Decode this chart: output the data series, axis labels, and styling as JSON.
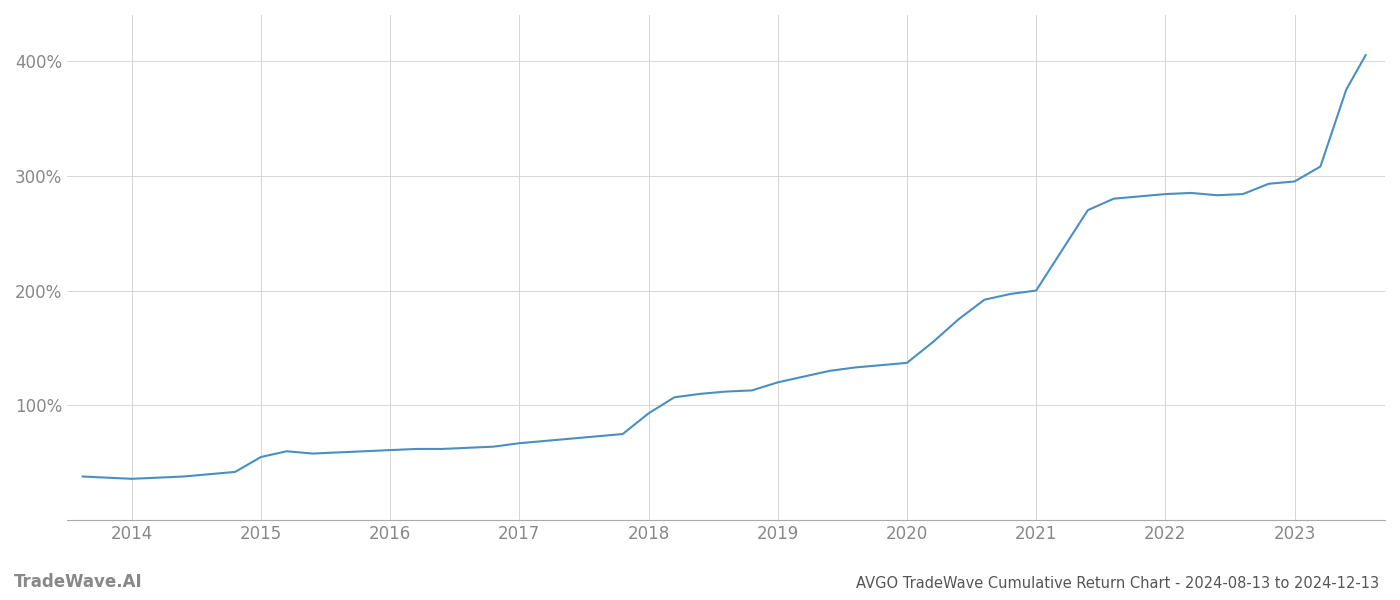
{
  "title": "AVGO TradeWave Cumulative Return Chart - 2024-08-13 to 2024-12-13",
  "watermark": "TradeWave.AI",
  "line_color": "#4a8fc4",
  "background_color": "#ffffff",
  "grid_color": "#d0d0d0",
  "x_years": [
    2014,
    2015,
    2016,
    2017,
    2018,
    2019,
    2020,
    2021,
    2022,
    2023
  ],
  "x_data": [
    2013.62,
    2014.0,
    2014.2,
    2014.4,
    2014.6,
    2014.8,
    2015.0,
    2015.2,
    2015.4,
    2015.6,
    2015.8,
    2016.0,
    2016.2,
    2016.4,
    2016.6,
    2016.8,
    2017.0,
    2017.2,
    2017.4,
    2017.6,
    2017.8,
    2018.0,
    2018.2,
    2018.4,
    2018.6,
    2018.8,
    2019.0,
    2019.2,
    2019.4,
    2019.6,
    2019.8,
    2020.0,
    2020.2,
    2020.4,
    2020.6,
    2020.8,
    2021.0,
    2021.2,
    2021.4,
    2021.6,
    2021.8,
    2022.0,
    2022.2,
    2022.4,
    2022.6,
    2022.8,
    2023.0,
    2023.2,
    2023.4,
    2023.55
  ],
  "y_data": [
    38,
    36,
    37,
    38,
    40,
    42,
    55,
    60,
    58,
    59,
    60,
    61,
    62,
    62,
    63,
    64,
    67,
    69,
    71,
    73,
    75,
    93,
    107,
    110,
    112,
    113,
    120,
    125,
    130,
    133,
    135,
    137,
    155,
    175,
    192,
    197,
    200,
    235,
    270,
    280,
    282,
    284,
    285,
    283,
    284,
    293,
    295,
    308,
    375,
    405
  ],
  "yticks": [
    100,
    200,
    300,
    400
  ],
  "ytick_labels": [
    "100%",
    "200%",
    "300%",
    "400%"
  ],
  "ylim": [
    0,
    440
  ],
  "xlim": [
    2013.5,
    2023.7
  ],
  "title_fontsize": 10.5,
  "watermark_fontsize": 12,
  "tick_fontsize": 12,
  "tick_color": "#888888",
  "spine_color": "#aaaaaa",
  "title_color": "#555555"
}
